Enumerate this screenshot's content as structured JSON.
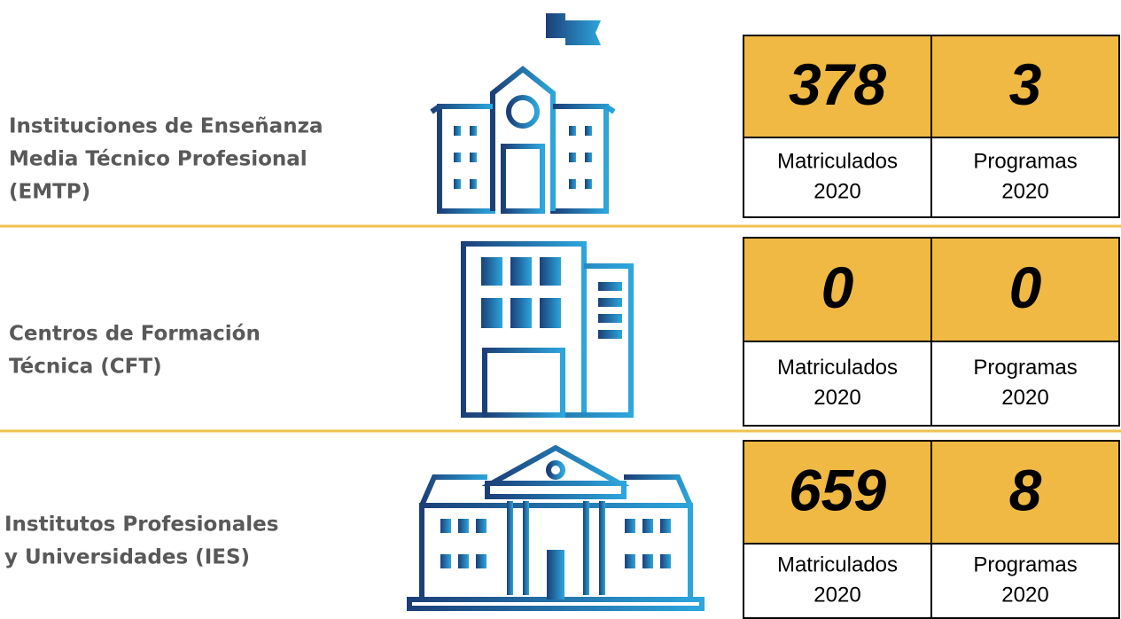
{
  "rows": [
    {
      "label": [
        "Instituciones de Enseñanza",
        "Media Técnico Profesional",
        "(EMTP)"
      ],
      "stats": [
        {
          "value": 378,
          "label": "Matriculados",
          "year": "2020"
        },
        {
          "value": 3,
          "label": "Programas",
          "year": "2020"
        }
      ]
    },
    {
      "label": [
        "Centros de Formación",
        "Técnica (CFT)"
      ],
      "stats": [
        {
          "value": 0,
          "label": "Matriculados",
          "year": "2020"
        },
        {
          "value": 0,
          "label": "Programas",
          "year": "2020"
        }
      ]
    },
    {
      "label": [
        "Institutos Profesionales",
        " y Universidades (IES)"
      ],
      "stats": [
        {
          "value": 659,
          "label": "Matriculados",
          "year": "2020"
        },
        {
          "value": 8,
          "label": "Programas",
          "year": "2020"
        }
      ]
    }
  ]
}
